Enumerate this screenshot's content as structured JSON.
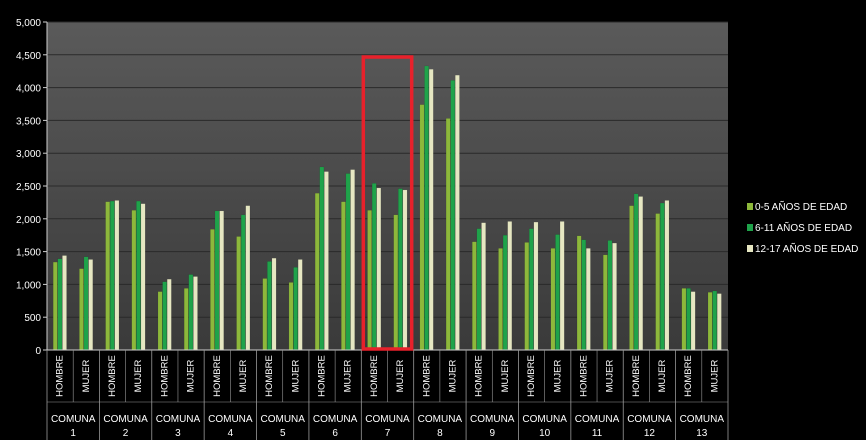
{
  "chart_data": {
    "type": "bar",
    "ylim": [
      0,
      5000
    ],
    "y_ticks": [
      "0",
      "500",
      "1,000",
      "1,500",
      "2,000",
      "2,500",
      "3,000",
      "3,500",
      "4,000",
      "4,500",
      "5,000"
    ],
    "y_tick_values": [
      0,
      500,
      1000,
      1500,
      2000,
      2500,
      3000,
      3500,
      4000,
      4500,
      5000
    ],
    "grid": true,
    "legend_position": "right",
    "highlight_group": "COMUNA 7",
    "groups": [
      {
        "name": "COMUNA",
        "num": "1"
      },
      {
        "name": "COMUNA",
        "num": "2"
      },
      {
        "name": "COMUNA",
        "num": "3"
      },
      {
        "name": "COMUNA",
        "num": "4"
      },
      {
        "name": "COMUNA",
        "num": "5"
      },
      {
        "name": "COMUNA",
        "num": "6"
      },
      {
        "name": "COMUNA",
        "num": "7"
      },
      {
        "name": "COMUNA",
        "num": "8"
      },
      {
        "name": "COMUNA",
        "num": "9"
      },
      {
        "name": "COMUNA",
        "num": "10"
      },
      {
        "name": "COMUNA",
        "num": "11"
      },
      {
        "name": "COMUNA",
        "num": "12"
      },
      {
        "name": "COMUNA",
        "num": "13"
      }
    ],
    "subcategories": [
      "HOMBRE",
      "MUJER"
    ],
    "series": [
      {
        "name": "0-5 AÑOS DE EDAD",
        "color": "#8db83b",
        "values": [
          1340,
          1240,
          2260,
          2130,
          890,
          940,
          1840,
          1730,
          1090,
          1030,
          2390,
          2260,
          2130,
          2060,
          3740,
          3530,
          1650,
          1550,
          1640,
          1550,
          1740,
          1450,
          2200,
          2080,
          940,
          880
        ]
      },
      {
        "name": "6-11 AÑOS DE EDAD",
        "color": "#1fa34a",
        "values": [
          1390,
          1420,
          2270,
          2270,
          1040,
          1150,
          2120,
          2060,
          1350,
          1260,
          2790,
          2690,
          2540,
          2460,
          4330,
          4110,
          1850,
          1750,
          1850,
          1760,
          1680,
          1670,
          2380,
          2240,
          940,
          900
        ]
      },
      {
        "name": "12-17 AÑOS DE EDAD",
        "color": "#e6e7c2",
        "values": [
          1440,
          1380,
          2280,
          2230,
          1080,
          1120,
          2120,
          2200,
          1400,
          1380,
          2720,
          2750,
          2470,
          2440,
          4280,
          4190,
          1940,
          1960,
          1950,
          1960,
          1550,
          1630,
          2340,
          2280,
          890,
          860
        ]
      }
    ]
  }
}
